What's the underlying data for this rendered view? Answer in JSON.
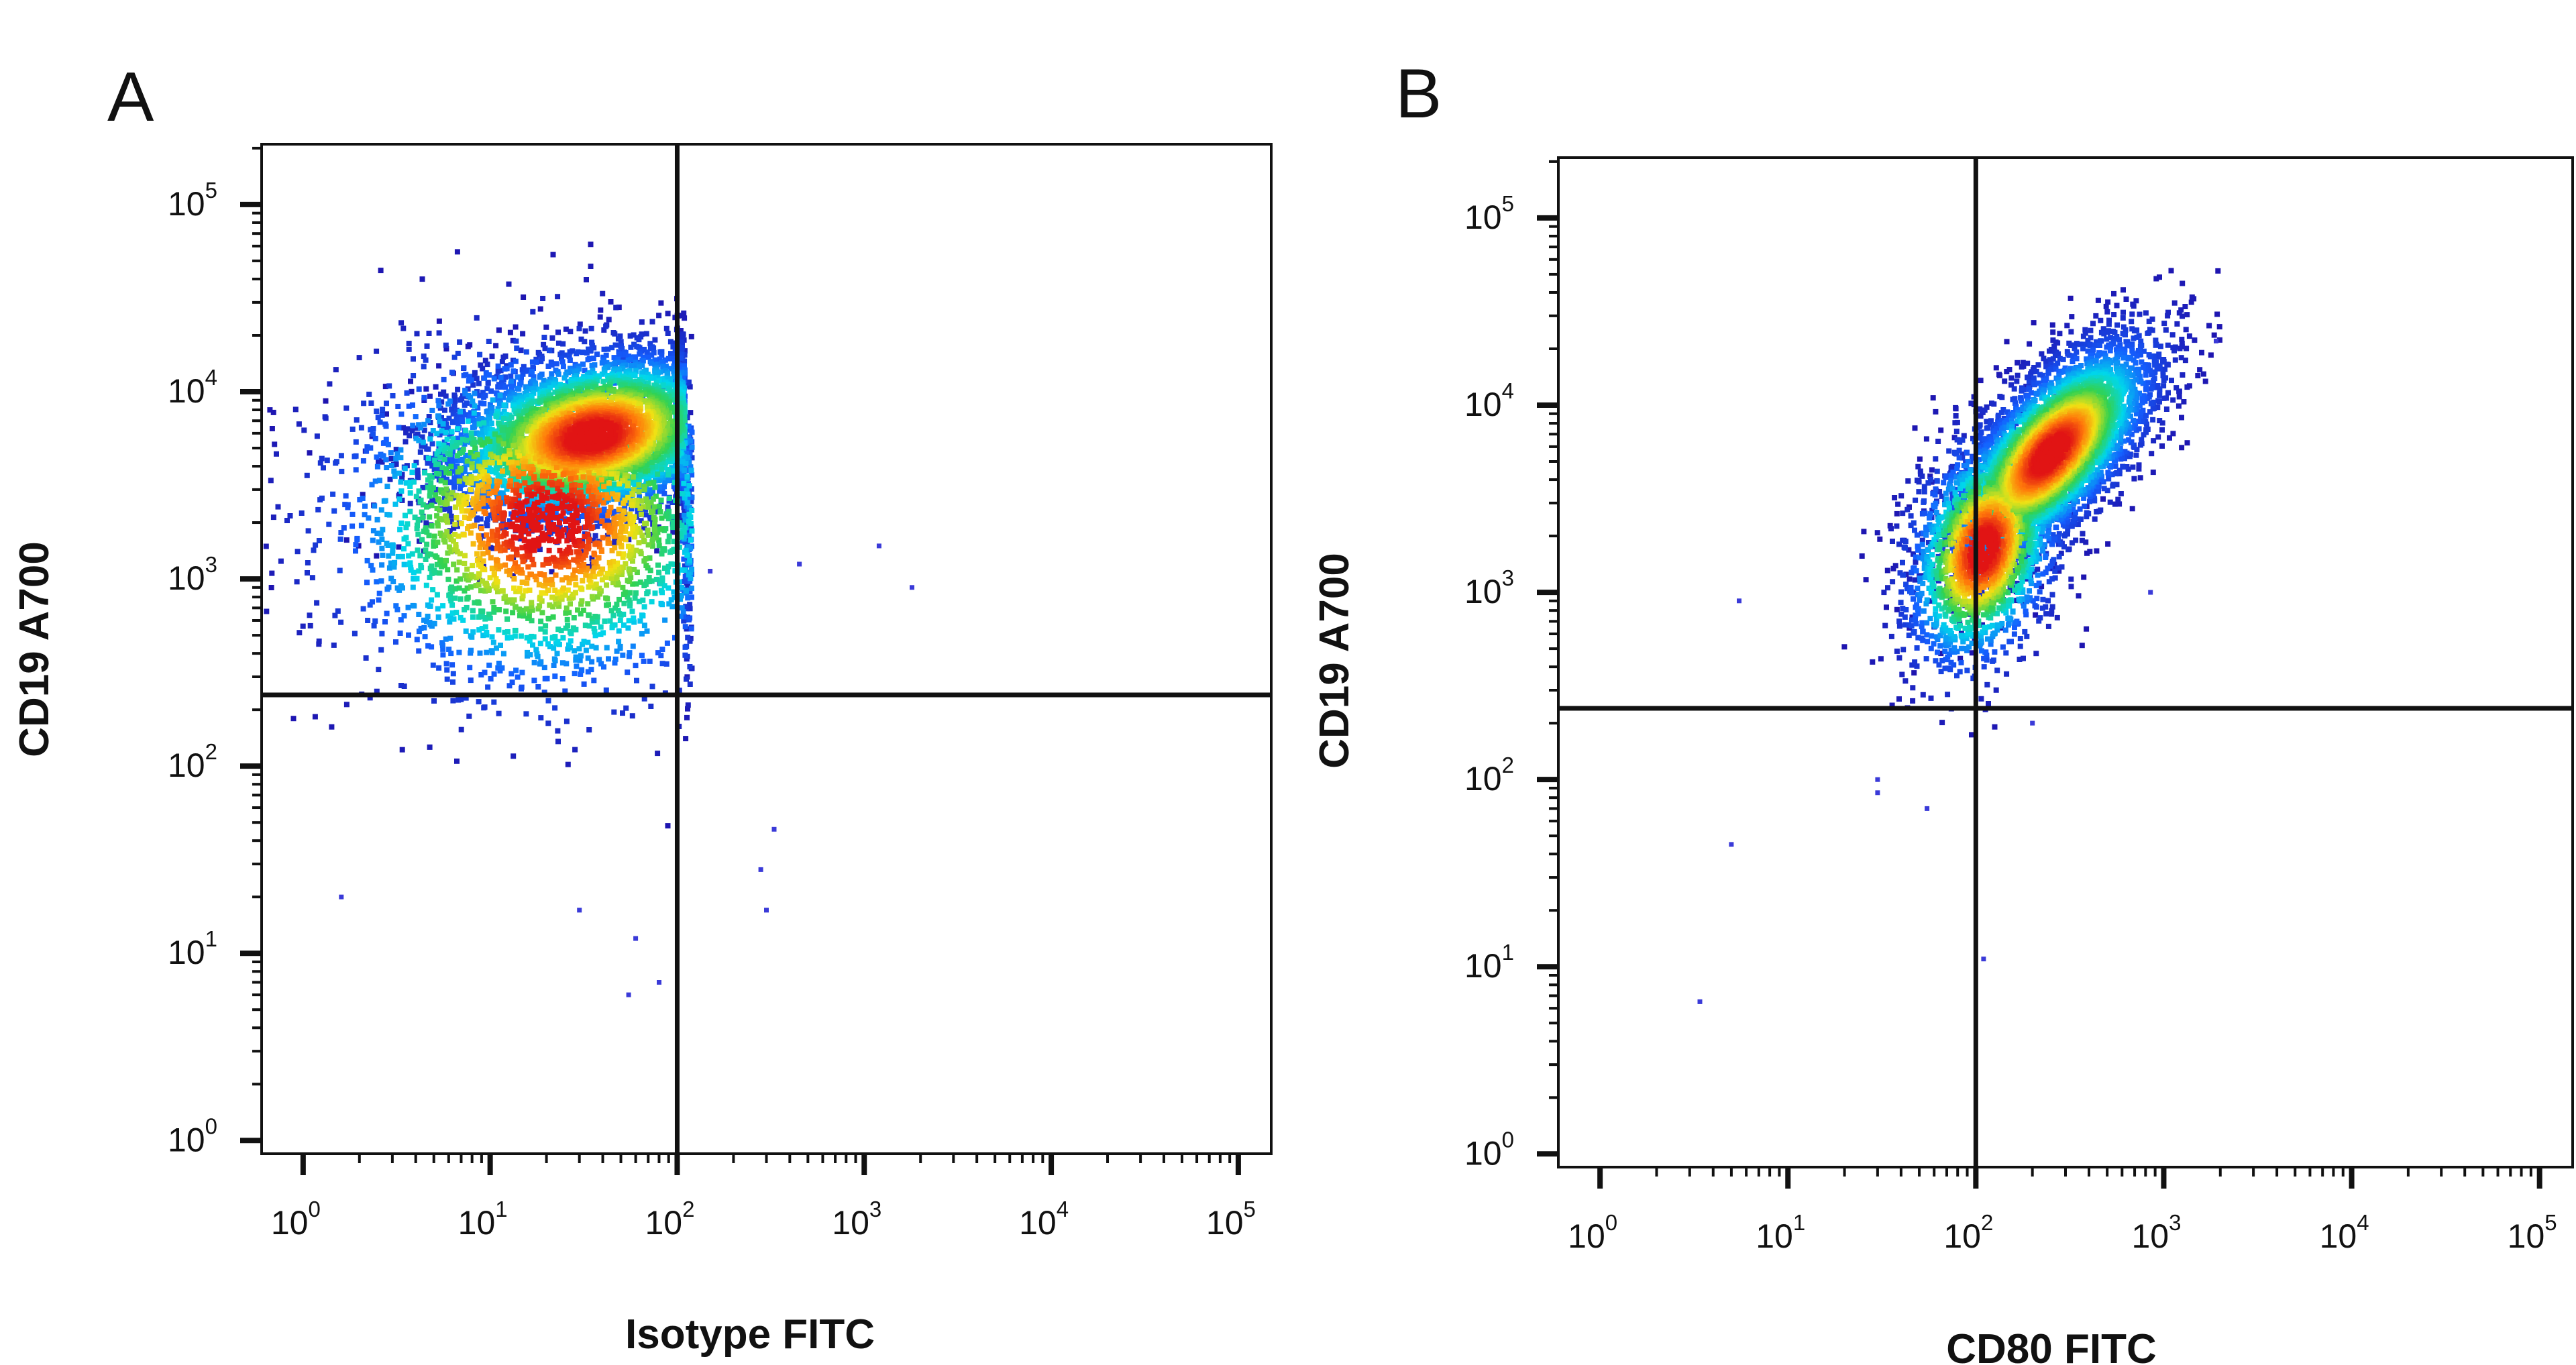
{
  "chart_data": [
    {
      "type": "scatter",
      "panel_label": "A",
      "title": "",
      "xlabel": "Isotype FITC",
      "ylabel": "CD19 A700",
      "xscale": "log",
      "yscale": "log",
      "xlim": [
        0.6,
        150000
      ],
      "ylim": [
        0.85,
        210000
      ],
      "x_ticks": [
        {
          "base": "10",
          "exp": "0"
        },
        {
          "base": "10",
          "exp": "1"
        },
        {
          "base": "10",
          "exp": "2"
        },
        {
          "base": "10",
          "exp": "3"
        },
        {
          "base": "10",
          "exp": "4"
        },
        {
          "base": "10",
          "exp": "5"
        }
      ],
      "y_ticks": [
        {
          "base": "10",
          "exp": "0"
        },
        {
          "base": "10",
          "exp": "1"
        },
        {
          "base": "10",
          "exp": "2"
        },
        {
          "base": "10",
          "exp": "3"
        },
        {
          "base": "10",
          "exp": "4"
        },
        {
          "base": "10",
          "exp": "5"
        }
      ],
      "quadrant_gate": {
        "x": 100,
        "y": 240
      },
      "grid": false,
      "legend": "none",
      "density_clusters": [
        {
          "center_x": 35,
          "center_y": 5800,
          "spread_log_x": 0.4,
          "spread_log_y": 0.22,
          "max_x": 110,
          "tilt": 0.15,
          "points": 4800
        },
        {
          "center_x": 20,
          "center_y": 2000,
          "spread_log_x": 0.55,
          "spread_log_y": 0.45,
          "max_x": 120,
          "tilt": 0.0,
          "points": 2600
        }
      ],
      "outliers": [
        [
          1.6,
          20
        ],
        [
          30,
          17
        ],
        [
          60,
          12
        ],
        [
          55,
          6
        ],
        [
          80,
          7
        ],
        [
          280,
          28
        ],
        [
          300,
          17
        ],
        [
          330,
          46
        ],
        [
          1800,
          900
        ],
        [
          1200,
          1500
        ],
        [
          450,
          1200
        ],
        [
          150,
          1100
        ]
      ]
    },
    {
      "type": "scatter",
      "panel_label": "B",
      "title": "",
      "xlabel": "CD80 FITC",
      "ylabel": "CD19 A700",
      "xscale": "log",
      "yscale": "log",
      "xlim": [
        0.6,
        150000
      ],
      "ylim": [
        0.85,
        210000
      ],
      "x_ticks": [
        {
          "base": "10",
          "exp": "0"
        },
        {
          "base": "10",
          "exp": "1"
        },
        {
          "base": "10",
          "exp": "2"
        },
        {
          "base": "10",
          "exp": "3"
        },
        {
          "base": "10",
          "exp": "4"
        },
        {
          "base": "10",
          "exp": "5"
        }
      ],
      "y_ticks": [
        {
          "base": "10",
          "exp": "0"
        },
        {
          "base": "10",
          "exp": "1"
        },
        {
          "base": "10",
          "exp": "2"
        },
        {
          "base": "10",
          "exp": "3"
        },
        {
          "base": "10",
          "exp": "4"
        },
        {
          "base": "10",
          "exp": "5"
        }
      ],
      "quadrant_gate": {
        "x": 100,
        "y": 240
      },
      "grid": false,
      "legend": "none",
      "density_clusters": [
        {
          "center_x": 250,
          "center_y": 5500,
          "spread_log_x": 0.27,
          "spread_log_y": 0.22,
          "max_x": 2000,
          "tilt": 0.75,
          "points": 4800
        },
        {
          "center_x": 110,
          "center_y": 1700,
          "spread_log_x": 0.2,
          "spread_log_y": 0.3,
          "max_x": 2000,
          "tilt": 0.5,
          "points": 2000
        }
      ],
      "outliers": [
        [
          5.5,
          900
        ],
        [
          5,
          45
        ],
        [
          3.4,
          6.5
        ],
        [
          110,
          11
        ],
        [
          55,
          70
        ],
        [
          30,
          85
        ],
        [
          200,
          200
        ],
        [
          1900,
          22000
        ],
        [
          850,
          1000
        ],
        [
          30,
          100
        ]
      ]
    }
  ]
}
